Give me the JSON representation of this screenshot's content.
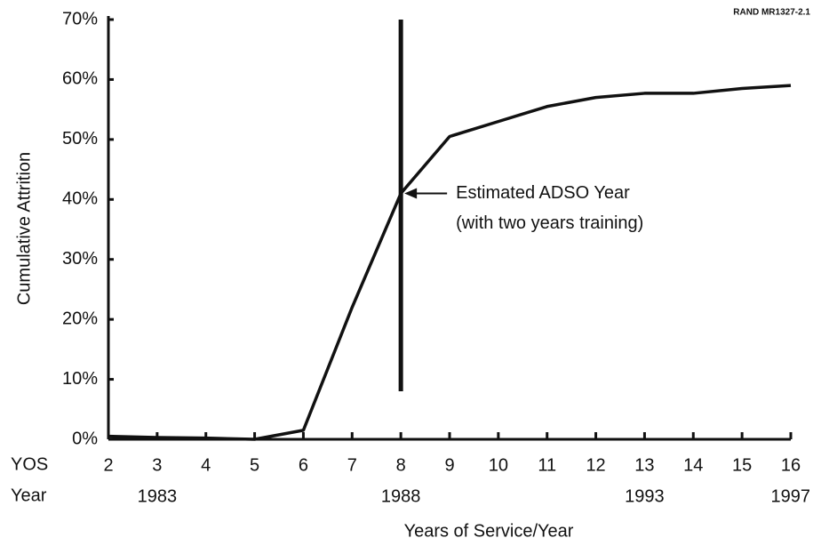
{
  "chart_data": {
    "type": "line",
    "source_note": "RAND MR1327-2.1",
    "ylabel": "Cumulative Attrition",
    "xlabel": "Years of Service/Year",
    "x_row_label": "YOS",
    "year_row_label": "Year",
    "x": [
      2,
      3,
      4,
      5,
      6,
      7,
      8,
      9,
      10,
      11,
      12,
      13,
      14,
      15,
      16
    ],
    "series": [
      {
        "name": "Cumulative Attrition",
        "color": "#111111",
        "values": [
          0.5,
          0.3,
          0.2,
          0,
          1.5,
          22,
          41,
          50.5,
          53,
          55.5,
          57,
          57.7,
          57.7,
          58.5,
          59
        ]
      }
    ],
    "xlim": [
      2,
      16
    ],
    "xticks": [
      2,
      3,
      4,
      5,
      6,
      7,
      8,
      9,
      10,
      11,
      12,
      13,
      14,
      15,
      16
    ],
    "year_ticks": [
      {
        "value": 3,
        "label": "1983"
      },
      {
        "value": 8,
        "label": "1988"
      },
      {
        "value": 13,
        "label": "1993"
      },
      {
        "value": 16,
        "label": "1997"
      }
    ],
    "ylim": [
      0,
      70
    ],
    "yticks": [
      {
        "value": 0,
        "label": "0%"
      },
      {
        "value": 10,
        "label": "10%"
      },
      {
        "value": 20,
        "label": "20%"
      },
      {
        "value": 30,
        "label": "30%"
      },
      {
        "value": 40,
        "label": "40%"
      },
      {
        "value": 50,
        "label": "50%"
      },
      {
        "value": 60,
        "label": "60%"
      },
      {
        "value": 70,
        "label": "70%"
      }
    ],
    "grid": false,
    "reference_line": {
      "x": 8,
      "y_range": [
        8,
        70
      ]
    },
    "annotation": {
      "x": 8,
      "y": 41,
      "lines": [
        "Estimated ADSO Year",
        "(with two years training)"
      ]
    }
  }
}
